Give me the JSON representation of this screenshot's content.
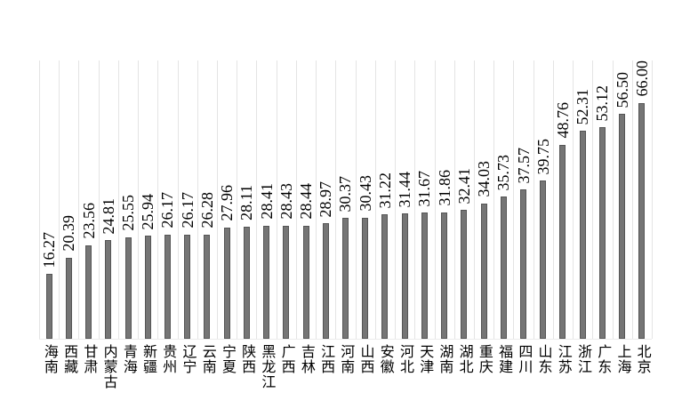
{
  "chart_data": {
    "type": "bar",
    "title": "",
    "xlabel": "",
    "ylabel": "",
    "ylim": [
      0,
      70
    ],
    "grid": "vertical-category-separators",
    "legend": "none",
    "orientation": "vertical",
    "value_label_rotation": -90,
    "category_label_orientation": "vertical-upright",
    "bar_color": "#757575",
    "bar_border_color": "#555555",
    "gridline_color": "#e4e4e4",
    "background_color": "#ffffff",
    "text_color": "#000000",
    "categories": [
      "海南",
      "西藏",
      "甘肃",
      "内蒙古",
      "青海",
      "新疆",
      "贵州",
      "辽宁",
      "云南",
      "宁夏",
      "陕西",
      "黑龙江",
      "广西",
      "吉林",
      "江西",
      "河南",
      "山西",
      "安徽",
      "河北",
      "天津",
      "湖南",
      "湖北",
      "重庆",
      "福建",
      "四川",
      "山东",
      "江苏",
      "浙江",
      "广东",
      "上海",
      "北京"
    ],
    "values": [
      16.27,
      20.39,
      23.56,
      24.81,
      25.55,
      25.94,
      26.17,
      26.17,
      26.28,
      27.96,
      28.11,
      28.41,
      28.43,
      28.44,
      28.97,
      30.37,
      30.43,
      31.22,
      31.44,
      31.67,
      31.86,
      32.41,
      34.03,
      35.73,
      37.57,
      39.75,
      48.76,
      52.31,
      53.12,
      56.5,
      66.0
    ],
    "value_labels": [
      "16.27",
      "20.39",
      "23.56",
      "24.81",
      "25.55",
      "25.94",
      "26.17",
      "26.17",
      "26.28",
      "27.96",
      "28.11",
      "28.41",
      "28.43",
      "28.44",
      "28.97",
      "30.37",
      "30.43",
      "31.22",
      "31.44",
      "31.67",
      "31.86",
      "32.41",
      "34.03",
      "35.73",
      "37.57",
      "39.75",
      "48.76",
      "52.31",
      "53.12",
      "56.50",
      "66.00"
    ]
  }
}
